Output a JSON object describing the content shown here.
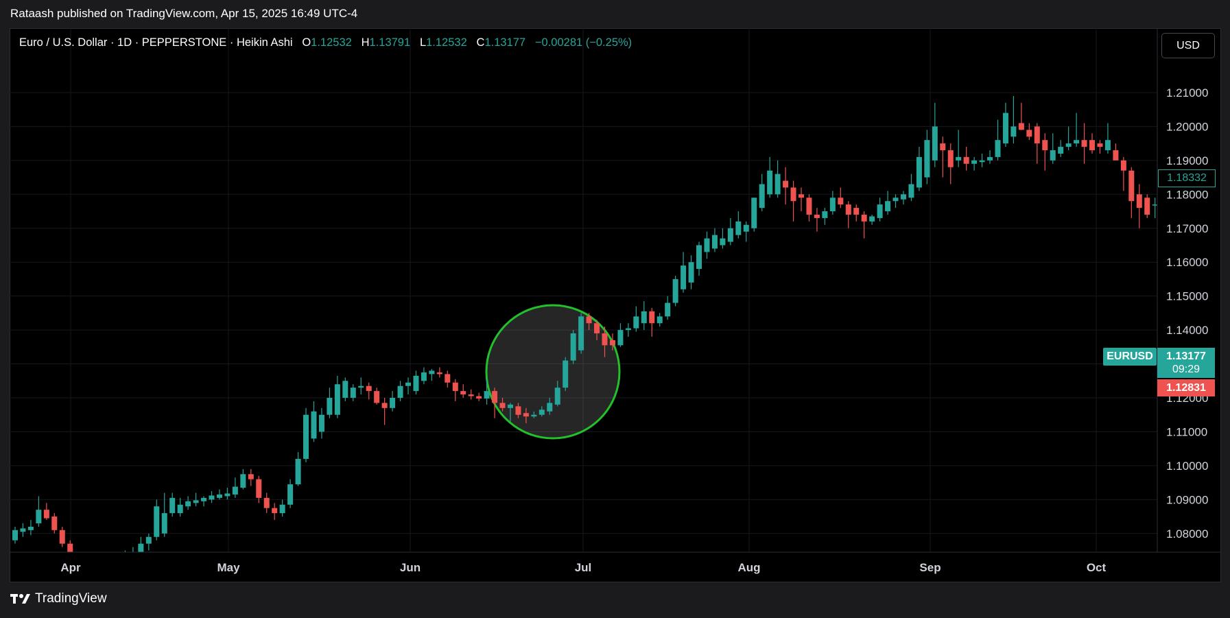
{
  "header": {
    "published": "Rataash published on TradingView.com, Apr 15, 2025 16:49 UTC-4"
  },
  "legend": {
    "symbol": "Euro / U.S. Dollar · 1D · PEPPERSTONE · Heikin Ashi",
    "o_label": "O",
    "o_value": "1.12532",
    "h_label": "H",
    "h_value": "1.13791",
    "l_label": "L",
    "l_value": "1.12532",
    "c_label": "C",
    "c_value": "1.13177",
    "change": "−0.00281 (−0.25%)"
  },
  "currency_button": "USD",
  "price_tags": {
    "top": "1.18332",
    "symbol": "EURUSD",
    "last": "1.13177",
    "countdown": "09:29",
    "prev": "1.12831"
  },
  "footer": {
    "brand": "TradingView"
  },
  "colors": {
    "up": "#26a69a",
    "down": "#ef5350",
    "background": "#000000",
    "highlight_ring": "#22c02a"
  },
  "chart_data": {
    "type": "candlestick",
    "style": "Heikin Ashi",
    "grid": true,
    "y_ticks": [
      "1.21000",
      "1.20000",
      "1.19000",
      "1.18000",
      "1.17000",
      "1.16000",
      "1.15000",
      "1.14000",
      "1.13000",
      "1.12000",
      "1.11000",
      "1.10000",
      "1.09000",
      "1.08000"
    ],
    "ylim": [
      1.0745,
      1.229
    ],
    "x_ticks": [
      "Apr",
      "May",
      "Jun",
      "Jul",
      "Aug",
      "Sep",
      "Oct"
    ],
    "candles": [
      {
        "o": 1.078,
        "h": 1.082,
        "l": 1.077,
        "c": 1.081
      },
      {
        "o": 1.0805,
        "h": 1.083,
        "l": 1.079,
        "c": 1.0815
      },
      {
        "o": 1.081,
        "h": 1.084,
        "l": 1.0795,
        "c": 1.082
      },
      {
        "o": 1.083,
        "h": 1.091,
        "l": 1.082,
        "c": 1.087
      },
      {
        "o": 1.087,
        "h": 1.089,
        "l": 1.084,
        "c": 1.0845
      },
      {
        "o": 1.085,
        "h": 1.086,
        "l": 1.08,
        "c": 1.081
      },
      {
        "o": 1.081,
        "h": 1.082,
        "l": 1.076,
        "c": 1.077
      },
      {
        "o": 1.077,
        "h": 1.078,
        "l": 1.072,
        "c": 1.073
      },
      {
        "o": 1.073,
        "h": 1.0745,
        "l": 1.07,
        "c": 1.071
      },
      {
        "o": 1.071,
        "h": 1.0725,
        "l": 1.069,
        "c": 1.0715
      },
      {
        "o": 1.0715,
        "h": 1.073,
        "l": 1.07,
        "c": 1.0725
      },
      {
        "o": 1.0725,
        "h": 1.074,
        "l": 1.0705,
        "c": 1.0718
      },
      {
        "o": 1.0718,
        "h": 1.0735,
        "l": 1.07,
        "c": 1.0722
      },
      {
        "o": 1.0722,
        "h": 1.074,
        "l": 1.0705,
        "c": 1.073
      },
      {
        "o": 1.073,
        "h": 1.075,
        "l": 1.0712,
        "c": 1.0738
      },
      {
        "o": 1.0738,
        "h": 1.076,
        "l": 1.072,
        "c": 1.0745
      },
      {
        "o": 1.0745,
        "h": 1.079,
        "l": 1.0735,
        "c": 1.077
      },
      {
        "o": 1.077,
        "h": 1.08,
        "l": 1.075,
        "c": 1.079
      },
      {
        "o": 1.079,
        "h": 1.09,
        "l": 1.078,
        "c": 1.088
      },
      {
        "o": 1.08,
        "h": 1.092,
        "l": 1.079,
        "c": 1.086
      },
      {
        "o": 1.086,
        "h": 1.092,
        "l": 1.085,
        "c": 1.0905
      },
      {
        "o": 1.086,
        "h": 1.0905,
        "l": 1.085,
        "c": 1.0885
      },
      {
        "o": 1.088,
        "h": 1.091,
        "l": 1.087,
        "c": 1.0895
      },
      {
        "o": 1.089,
        "h": 1.092,
        "l": 1.088,
        "c": 1.0898
      },
      {
        "o": 1.0895,
        "h": 1.091,
        "l": 1.088,
        "c": 1.0905
      },
      {
        "o": 1.09,
        "h": 1.0925,
        "l": 1.089,
        "c": 1.0912
      },
      {
        "o": 1.0905,
        "h": 1.093,
        "l": 1.09,
        "c": 1.0915
      },
      {
        "o": 1.091,
        "h": 1.0935,
        "l": 1.09,
        "c": 1.0918
      },
      {
        "o": 1.0915,
        "h": 1.0965,
        "l": 1.0905,
        "c": 1.0938
      },
      {
        "o": 1.0935,
        "h": 1.099,
        "l": 1.093,
        "c": 1.0975
      },
      {
        "o": 1.0975,
        "h": 1.099,
        "l": 1.094,
        "c": 1.096
      },
      {
        "o": 1.096,
        "h": 1.097,
        "l": 1.089,
        "c": 1.0905
      },
      {
        "o": 1.0905,
        "h": 1.092,
        "l": 1.086,
        "c": 1.0875
      },
      {
        "o": 1.0875,
        "h": 1.089,
        "l": 1.084,
        "c": 1.086
      },
      {
        "o": 1.086,
        "h": 1.09,
        "l": 1.085,
        "c": 1.0885
      },
      {
        "o": 1.0885,
        "h": 1.096,
        "l": 1.0875,
        "c": 1.0945
      },
      {
        "o": 1.0945,
        "h": 1.104,
        "l": 1.094,
        "c": 1.102
      },
      {
        "o": 1.102,
        "h": 1.117,
        "l": 1.101,
        "c": 1.115
      },
      {
        "o": 1.108,
        "h": 1.119,
        "l": 1.107,
        "c": 1.116
      },
      {
        "o": 1.11,
        "h": 1.117,
        "l": 1.108,
        "c": 1.115
      },
      {
        "o": 1.115,
        "h": 1.123,
        "l": 1.114,
        "c": 1.12
      },
      {
        "o": 1.115,
        "h": 1.1265,
        "l": 1.114,
        "c": 1.124
      },
      {
        "o": 1.12,
        "h": 1.126,
        "l": 1.119,
        "c": 1.125
      },
      {
        "o": 1.12,
        "h": 1.124,
        "l": 1.119,
        "c": 1.123
      },
      {
        "o": 1.123,
        "h": 1.126,
        "l": 1.121,
        "c": 1.1235
      },
      {
        "o": 1.1235,
        "h": 1.1245,
        "l": 1.1195,
        "c": 1.122
      },
      {
        "o": 1.122,
        "h": 1.123,
        "l": 1.118,
        "c": 1.1185
      },
      {
        "o": 1.1185,
        "h": 1.12,
        "l": 1.112,
        "c": 1.117
      },
      {
        "o": 1.117,
        "h": 1.122,
        "l": 1.116,
        "c": 1.12
      },
      {
        "o": 1.12,
        "h": 1.125,
        "l": 1.119,
        "c": 1.1235
      },
      {
        "o": 1.1235,
        "h": 1.126,
        "l": 1.121,
        "c": 1.1245
      },
      {
        "o": 1.122,
        "h": 1.128,
        "l": 1.121,
        "c": 1.1265
      },
      {
        "o": 1.125,
        "h": 1.129,
        "l": 1.124,
        "c": 1.1275
      },
      {
        "o": 1.127,
        "h": 1.1285,
        "l": 1.125,
        "c": 1.128
      },
      {
        "o": 1.1275,
        "h": 1.129,
        "l": 1.126,
        "c": 1.127
      },
      {
        "o": 1.127,
        "h": 1.128,
        "l": 1.123,
        "c": 1.1245
      },
      {
        "o": 1.1245,
        "h": 1.1255,
        "l": 1.119,
        "c": 1.122
      },
      {
        "o": 1.122,
        "h": 1.124,
        "l": 1.12,
        "c": 1.121
      },
      {
        "o": 1.121,
        "h": 1.1225,
        "l": 1.1195,
        "c": 1.1205
      },
      {
        "o": 1.1205,
        "h": 1.1215,
        "l": 1.119,
        "c": 1.1198
      },
      {
        "o": 1.1198,
        "h": 1.1255,
        "l": 1.118,
        "c": 1.122
      },
      {
        "o": 1.122,
        "h": 1.123,
        "l": 1.114,
        "c": 1.1185
      },
      {
        "o": 1.1185,
        "h": 1.12,
        "l": 1.116,
        "c": 1.117
      },
      {
        "o": 1.117,
        "h": 1.1185,
        "l": 1.113,
        "c": 1.118
      },
      {
        "o": 1.1175,
        "h": 1.1185,
        "l": 1.114,
        "c": 1.115
      },
      {
        "o": 1.1155,
        "h": 1.117,
        "l": 1.1125,
        "c": 1.1145
      },
      {
        "o": 1.1145,
        "h": 1.116,
        "l": 1.114,
        "c": 1.115
      },
      {
        "o": 1.115,
        "h": 1.1175,
        "l": 1.1145,
        "c": 1.1165
      },
      {
        "o": 1.116,
        "h": 1.12,
        "l": 1.115,
        "c": 1.1185
      },
      {
        "o": 1.118,
        "h": 1.125,
        "l": 1.1175,
        "c": 1.123
      },
      {
        "o": 1.123,
        "h": 1.132,
        "l": 1.122,
        "c": 1.131
      },
      {
        "o": 1.131,
        "h": 1.14,
        "l": 1.13,
        "c": 1.139
      },
      {
        "o": 1.134,
        "h": 1.145,
        "l": 1.133,
        "c": 1.144
      },
      {
        "o": 1.144,
        "h": 1.145,
        "l": 1.14,
        "c": 1.142
      },
      {
        "o": 1.142,
        "h": 1.143,
        "l": 1.137,
        "c": 1.139
      },
      {
        "o": 1.139,
        "h": 1.141,
        "l": 1.132,
        "c": 1.1355
      },
      {
        "o": 1.137,
        "h": 1.139,
        "l": 1.134,
        "c": 1.1355
      },
      {
        "o": 1.1355,
        "h": 1.142,
        "l": 1.135,
        "c": 1.14
      },
      {
        "o": 1.14,
        "h": 1.142,
        "l": 1.138,
        "c": 1.1405
      },
      {
        "o": 1.1405,
        "h": 1.147,
        "l": 1.1395,
        "c": 1.144
      },
      {
        "o": 1.142,
        "h": 1.1485,
        "l": 1.14,
        "c": 1.1455
      },
      {
        "o": 1.1455,
        "h": 1.1465,
        "l": 1.138,
        "c": 1.142
      },
      {
        "o": 1.142,
        "h": 1.145,
        "l": 1.141,
        "c": 1.144
      },
      {
        "o": 1.144,
        "h": 1.15,
        "l": 1.143,
        "c": 1.148
      },
      {
        "o": 1.148,
        "h": 1.156,
        "l": 1.147,
        "c": 1.155
      },
      {
        "o": 1.152,
        "h": 1.163,
        "l": 1.151,
        "c": 1.159
      },
      {
        "o": 1.154,
        "h": 1.162,
        "l": 1.152,
        "c": 1.16
      },
      {
        "o": 1.158,
        "h": 1.166,
        "l": 1.156,
        "c": 1.165
      },
      {
        "o": 1.163,
        "h": 1.169,
        "l": 1.161,
        "c": 1.167
      },
      {
        "o": 1.164,
        "h": 1.17,
        "l": 1.163,
        "c": 1.168
      },
      {
        "o": 1.165,
        "h": 1.17,
        "l": 1.164,
        "c": 1.167
      },
      {
        "o": 1.166,
        "h": 1.173,
        "l": 1.165,
        "c": 1.17
      },
      {
        "o": 1.168,
        "h": 1.175,
        "l": 1.167,
        "c": 1.172
      },
      {
        "o": 1.169,
        "h": 1.172,
        "l": 1.166,
        "c": 1.171
      },
      {
        "o": 1.17,
        "h": 1.179,
        "l": 1.169,
        "c": 1.179
      },
      {
        "o": 1.176,
        "h": 1.186,
        "l": 1.175,
        "c": 1.183
      },
      {
        "o": 1.18,
        "h": 1.191,
        "l": 1.179,
        "c": 1.187
      },
      {
        "o": 1.18,
        "h": 1.19,
        "l": 1.179,
        "c": 1.186
      },
      {
        "o": 1.184,
        "h": 1.188,
        "l": 1.177,
        "c": 1.182
      },
      {
        "o": 1.182,
        "h": 1.184,
        "l": 1.172,
        "c": 1.178
      },
      {
        "o": 1.18,
        "h": 1.182,
        "l": 1.175,
        "c": 1.179
      },
      {
        "o": 1.179,
        "h": 1.18,
        "l": 1.172,
        "c": 1.174
      },
      {
        "o": 1.174,
        "h": 1.176,
        "l": 1.169,
        "c": 1.173
      },
      {
        "o": 1.173,
        "h": 1.176,
        "l": 1.171,
        "c": 1.175
      },
      {
        "o": 1.175,
        "h": 1.181,
        "l": 1.174,
        "c": 1.179
      },
      {
        "o": 1.179,
        "h": 1.182,
        "l": 1.176,
        "c": 1.177
      },
      {
        "o": 1.177,
        "h": 1.178,
        "l": 1.17,
        "c": 1.174
      },
      {
        "o": 1.176,
        "h": 1.177,
        "l": 1.172,
        "c": 1.174
      },
      {
        "o": 1.174,
        "h": 1.175,
        "l": 1.167,
        "c": 1.172
      },
      {
        "o": 1.172,
        "h": 1.174,
        "l": 1.171,
        "c": 1.1735
      },
      {
        "o": 1.173,
        "h": 1.179,
        "l": 1.172,
        "c": 1.177
      },
      {
        "o": 1.175,
        "h": 1.181,
        "l": 1.174,
        "c": 1.178
      },
      {
        "o": 1.178,
        "h": 1.18,
        "l": 1.176,
        "c": 1.179
      },
      {
        "o": 1.1785,
        "h": 1.181,
        "l": 1.177,
        "c": 1.18
      },
      {
        "o": 1.179,
        "h": 1.186,
        "l": 1.178,
        "c": 1.183
      },
      {
        "o": 1.182,
        "h": 1.194,
        "l": 1.181,
        "c": 1.191
      },
      {
        "o": 1.185,
        "h": 1.199,
        "l": 1.183,
        "c": 1.196
      },
      {
        "o": 1.19,
        "h": 1.207,
        "l": 1.188,
        "c": 1.2
      },
      {
        "o": 1.195,
        "h": 1.197,
        "l": 1.185,
        "c": 1.193
      },
      {
        "o": 1.193,
        "h": 1.195,
        "l": 1.183,
        "c": 1.188
      },
      {
        "o": 1.19,
        "h": 1.199,
        "l": 1.188,
        "c": 1.191
      },
      {
        "o": 1.191,
        "h": 1.194,
        "l": 1.187,
        "c": 1.189
      },
      {
        "o": 1.189,
        "h": 1.191,
        "l": 1.187,
        "c": 1.19
      },
      {
        "o": 1.1895,
        "h": 1.192,
        "l": 1.188,
        "c": 1.19
      },
      {
        "o": 1.19,
        "h": 1.193,
        "l": 1.189,
        "c": 1.191
      },
      {
        "o": 1.191,
        "h": 1.202,
        "l": 1.19,
        "c": 1.196
      },
      {
        "o": 1.195,
        "h": 1.207,
        "l": 1.194,
        "c": 1.204
      },
      {
        "o": 1.197,
        "h": 1.209,
        "l": 1.195,
        "c": 1.2
      },
      {
        "o": 1.201,
        "h": 1.207,
        "l": 1.199,
        "c": 1.199
      },
      {
        "o": 1.199,
        "h": 1.201,
        "l": 1.196,
        "c": 1.197
      },
      {
        "o": 1.2,
        "h": 1.201,
        "l": 1.189,
        "c": 1.195
      },
      {
        "o": 1.196,
        "h": 1.198,
        "l": 1.187,
        "c": 1.193
      },
      {
        "o": 1.19,
        "h": 1.198,
        "l": 1.189,
        "c": 1.193
      },
      {
        "o": 1.192,
        "h": 1.196,
        "l": 1.191,
        "c": 1.194
      },
      {
        "o": 1.194,
        "h": 1.2,
        "l": 1.193,
        "c": 1.195
      },
      {
        "o": 1.195,
        "h": 1.204,
        "l": 1.194,
        "c": 1.196
      },
      {
        "o": 1.196,
        "h": 1.201,
        "l": 1.189,
        "c": 1.194
      },
      {
        "o": 1.196,
        "h": 1.198,
        "l": 1.192,
        "c": 1.193
      },
      {
        "o": 1.195,
        "h": 1.196,
        "l": 1.192,
        "c": 1.194
      },
      {
        "o": 1.193,
        "h": 1.201,
        "l": 1.192,
        "c": 1.196
      },
      {
        "o": 1.193,
        "h": 1.195,
        "l": 1.19,
        "c": 1.19
      },
      {
        "o": 1.19,
        "h": 1.191,
        "l": 1.181,
        "c": 1.187
      },
      {
        "o": 1.187,
        "h": 1.188,
        "l": 1.173,
        "c": 1.178
      },
      {
        "o": 1.18,
        "h": 1.183,
        "l": 1.17,
        "c": 1.176
      },
      {
        "o": 1.179,
        "h": 1.18,
        "l": 1.173,
        "c": 1.174
      },
      {
        "o": 1.177,
        "h": 1.179,
        "l": 1.173,
        "c": 1.177
      },
      {
        "o": 1.176,
        "h": 1.178,
        "l": 1.17,
        "c": 1.176
      },
      {
        "o": 1.178,
        "h": 1.179,
        "l": 1.174,
        "c": 1.175
      },
      {
        "o": 1.175,
        "h": 1.177,
        "l": 1.173,
        "c": 1.176
      },
      {
        "o": 1.177,
        "h": 1.178,
        "l": 1.17,
        "c": 1.173
      },
      {
        "o": 1.173,
        "h": 1.176,
        "l": 1.17,
        "c": 1.174
      },
      {
        "o": 1.173,
        "h": 1.177,
        "l": 1.169,
        "c": 1.172
      },
      {
        "o": 1.173,
        "h": 1.176,
        "l": 1.167,
        "c": 1.172
      },
      {
        "o": 1.172,
        "h": 1.174,
        "l": 1.171,
        "c": 1.1735
      },
      {
        "o": 1.173,
        "h": 1.178,
        "l": 1.172,
        "c": 1.177
      },
      {
        "o": 1.176,
        "h": 1.187,
        "l": 1.175,
        "c": 1.184
      }
    ]
  }
}
